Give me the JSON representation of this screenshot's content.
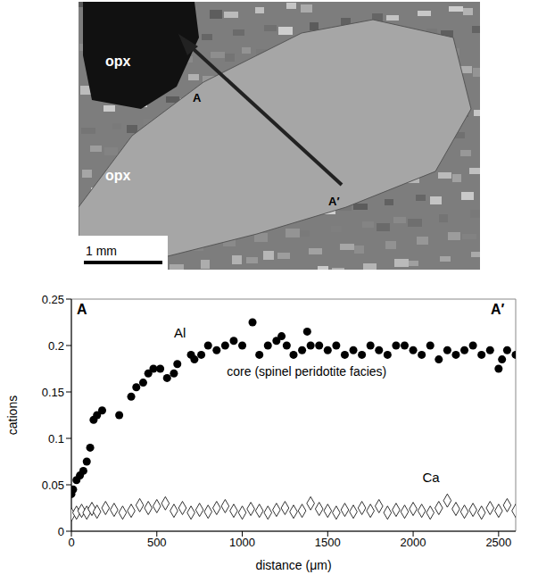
{
  "image": {
    "labels": [
      "opx",
      "opx",
      "A",
      "A′"
    ],
    "scale_bar": "1 mm"
  },
  "chart_data": {
    "type": "scatter",
    "xlabel": "distance (μm)",
    "ylabel": "cations",
    "xlim": [
      0,
      2600
    ],
    "xticks": [
      0,
      500,
      1000,
      1500,
      2000,
      2500
    ],
    "ylim": [
      0,
      0.25
    ],
    "yticks": [
      0,
      0.05,
      0.1,
      0.15,
      0.2,
      0.25
    ],
    "annotations": [
      "A",
      "A′",
      "Al",
      "core (spinel peridotite facies)",
      "Ca"
    ],
    "series": [
      {
        "name": "Al",
        "color": "#000000",
        "marker": "circle",
        "x": [
          0,
          10,
          30,
          50,
          70,
          90,
          110,
          130,
          150,
          180,
          280,
          350,
          380,
          420,
          450,
          480,
          520,
          560,
          600,
          620,
          700,
          720,
          760,
          800,
          850,
          900,
          950,
          1000,
          1060,
          1100,
          1150,
          1200,
          1230,
          1260,
          1300,
          1350,
          1380,
          1400,
          1450,
          1500,
          1550,
          1600,
          1650,
          1700,
          1750,
          1800,
          1850,
          1900,
          1950,
          2000,
          2050,
          2100,
          2150,
          2200,
          2250,
          2300,
          2350,
          2400,
          2450,
          2500,
          2520,
          2550,
          2600
        ],
        "values": [
          0.04,
          0.045,
          0.055,
          0.06,
          0.065,
          0.075,
          0.09,
          0.12,
          0.125,
          0.13,
          0.125,
          0.145,
          0.155,
          0.16,
          0.17,
          0.175,
          0.175,
          0.165,
          0.17,
          0.18,
          0.19,
          0.185,
          0.19,
          0.2,
          0.195,
          0.2,
          0.205,
          0.2,
          0.225,
          0.19,
          0.2,
          0.205,
          0.21,
          0.2,
          0.19,
          0.195,
          0.215,
          0.2,
          0.2,
          0.195,
          0.2,
          0.19,
          0.195,
          0.19,
          0.2,
          0.195,
          0.19,
          0.2,
          0.2,
          0.195,
          0.19,
          0.2,
          0.185,
          0.195,
          0.19,
          0.195,
          0.2,
          0.19,
          0.195,
          0.175,
          0.185,
          0.195,
          0.19
        ]
      },
      {
        "name": "Ca",
        "color": "#000000",
        "marker": "diamond",
        "x": [
          0,
          30,
          60,
          90,
          120,
          150,
          200,
          250,
          300,
          350,
          400,
          450,
          500,
          550,
          600,
          650,
          700,
          750,
          800,
          850,
          900,
          950,
          1000,
          1050,
          1100,
          1150,
          1200,
          1250,
          1300,
          1350,
          1400,
          1450,
          1500,
          1550,
          1600,
          1650,
          1700,
          1750,
          1800,
          1850,
          1900,
          1950,
          2000,
          2050,
          2100,
          2150,
          2200,
          2250,
          2300,
          2350,
          2400,
          2450,
          2500,
          2550,
          2600
        ],
        "values": [
          0.018,
          0.02,
          0.022,
          0.02,
          0.024,
          0.021,
          0.025,
          0.023,
          0.02,
          0.022,
          0.028,
          0.025,
          0.027,
          0.03,
          0.022,
          0.025,
          0.02,
          0.023,
          0.021,
          0.025,
          0.027,
          0.022,
          0.02,
          0.024,
          0.022,
          0.02,
          0.023,
          0.025,
          0.021,
          0.022,
          0.03,
          0.024,
          0.022,
          0.02,
          0.023,
          0.021,
          0.025,
          0.022,
          0.027,
          0.02,
          0.023,
          0.021,
          0.024,
          0.022,
          0.02,
          0.025,
          0.033,
          0.024,
          0.021,
          0.023,
          0.02,
          0.025,
          0.022,
          0.028,
          0.022
        ]
      }
    ]
  }
}
